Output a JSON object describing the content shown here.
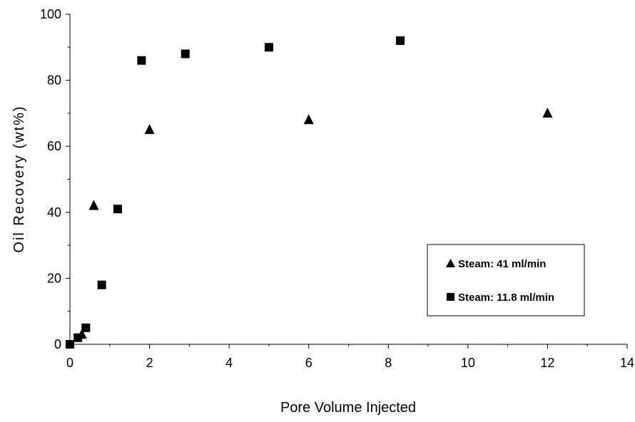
{
  "chart_data": {
    "type": "scatter",
    "title": "",
    "xlabel": "Pore Volume Injected",
    "ylabel": "Oil Recovery (wt%)",
    "xlim": [
      0,
      14
    ],
    "ylim": [
      0,
      100
    ],
    "x_ticks": [
      0,
      2,
      4,
      6,
      8,
      10,
      12,
      14
    ],
    "y_ticks": [
      0,
      20,
      40,
      60,
      80,
      100
    ],
    "grid": false,
    "legend_position": "bottom-right",
    "series": [
      {
        "name": "Steam: 41 ml/min",
        "marker": "triangle",
        "color": "#000000",
        "points": [
          {
            "x": 0.3,
            "y": 3
          },
          {
            "x": 0.6,
            "y": 42
          },
          {
            "x": 2.0,
            "y": 65
          },
          {
            "x": 6.0,
            "y": 68
          },
          {
            "x": 12.0,
            "y": 70
          }
        ]
      },
      {
        "name": "Steam: 11.8 ml/min",
        "marker": "square",
        "color": "#000000",
        "points": [
          {
            "x": 0.0,
            "y": 0
          },
          {
            "x": 0.2,
            "y": 2
          },
          {
            "x": 0.4,
            "y": 5
          },
          {
            "x": 0.8,
            "y": 18
          },
          {
            "x": 1.2,
            "y": 41
          },
          {
            "x": 1.8,
            "y": 86
          },
          {
            "x": 2.9,
            "y": 88
          },
          {
            "x": 5.0,
            "y": 90
          },
          {
            "x": 8.3,
            "y": 92
          }
        ]
      }
    ]
  }
}
